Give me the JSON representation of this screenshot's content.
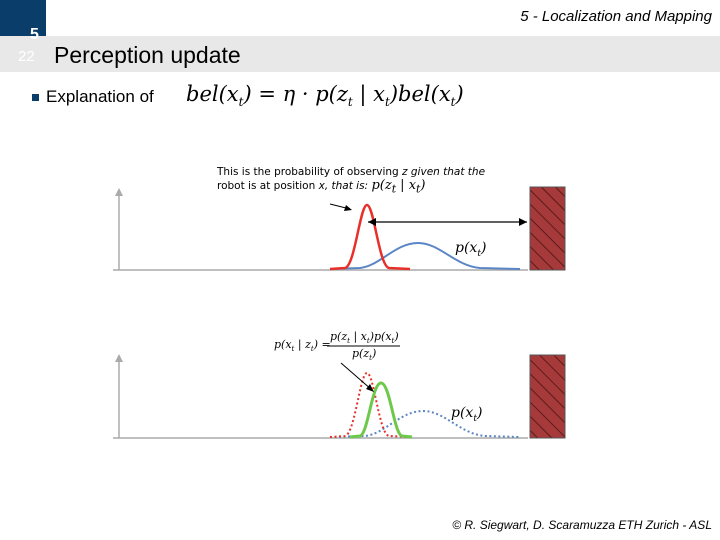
{
  "header": {
    "title": "5 - Localization and Mapping",
    "chapter": "5",
    "slide_number": "22"
  },
  "slide": {
    "title": "Perception update",
    "bullet_text": "Explanation of",
    "formula": {
      "lhs": "bel(x",
      "rhs_pre": ") = η · p(z",
      "rhs_mid": " | x",
      "rhs_post": ")bel(x",
      "end": ")",
      "sub_t": "t"
    }
  },
  "note": {
    "line1_a": "This is the probability of observing ",
    "line1_z": "z given that the",
    "line2_a": "robot is at position ",
    "line2_x": "x, that is:",
    "math_expr": "p(z",
    "math_expr_mid": " | x",
    "math_expr_end": ")"
  },
  "labels": {
    "top_px": "p(x",
    "top_px_end": ")",
    "bottom_px": "p(x",
    "bottom_px_end": ")",
    "bayes_lhs": "p(x",
    "bayes_lhs_mid": " | z",
    "bayes_lhs_end": ") =",
    "bayes_num": "p(z",
    "bayes_num_mid": " | x",
    "bayes_num_mid2": ")p(x",
    "bayes_num_end": ")",
    "bayes_den": "p(z",
    "bayes_den_end": ")",
    "sub_t": "t"
  },
  "colors": {
    "chapter_box": "#0b3d6b",
    "red_curve": "#e8302a",
    "blue_curve": "#5b86c5",
    "green_curve": "#6ec94a",
    "wall_fill": "#a63a3a"
  },
  "footer": {
    "copyright": "© R. Siegwart, D. Scaramuzza ETH Zurich - ASL"
  }
}
